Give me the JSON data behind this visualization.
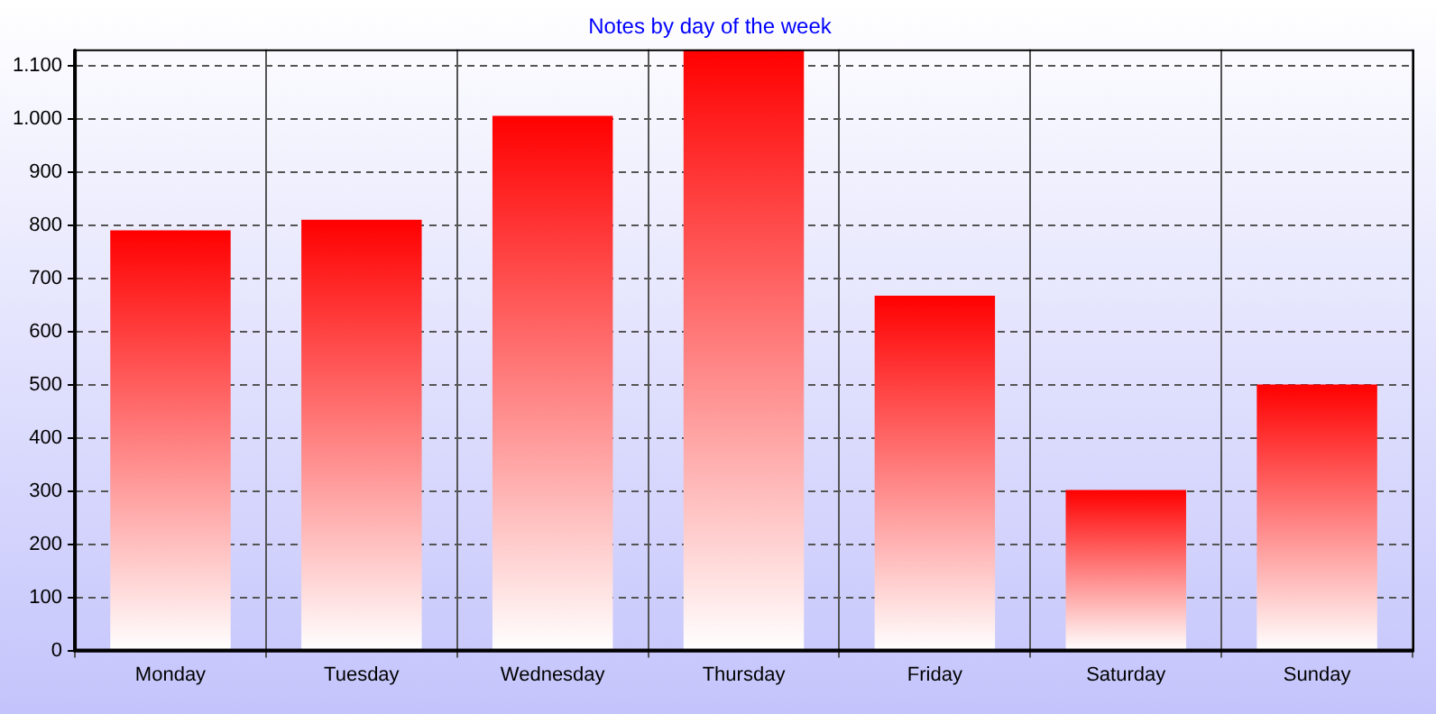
{
  "chart_data": {
    "type": "bar",
    "title": "Notes by day of the week",
    "categories": [
      "Monday",
      "Tuesday",
      "Wednesday",
      "Thursday",
      "Friday",
      "Saturday",
      "Sunday"
    ],
    "values": [
      790,
      810,
      1005,
      1130,
      667,
      302,
      500
    ],
    "color": "#ff0000",
    "ylim": [
      0,
      1130
    ],
    "yticks": [
      0,
      100,
      200,
      300,
      400,
      500,
      600,
      700,
      800,
      900,
      {
        "value": 1000,
        "label": "1.000"
      },
      {
        "value": 1100,
        "label": "1.100"
      }
    ],
    "grid": true,
    "legend": false
  }
}
